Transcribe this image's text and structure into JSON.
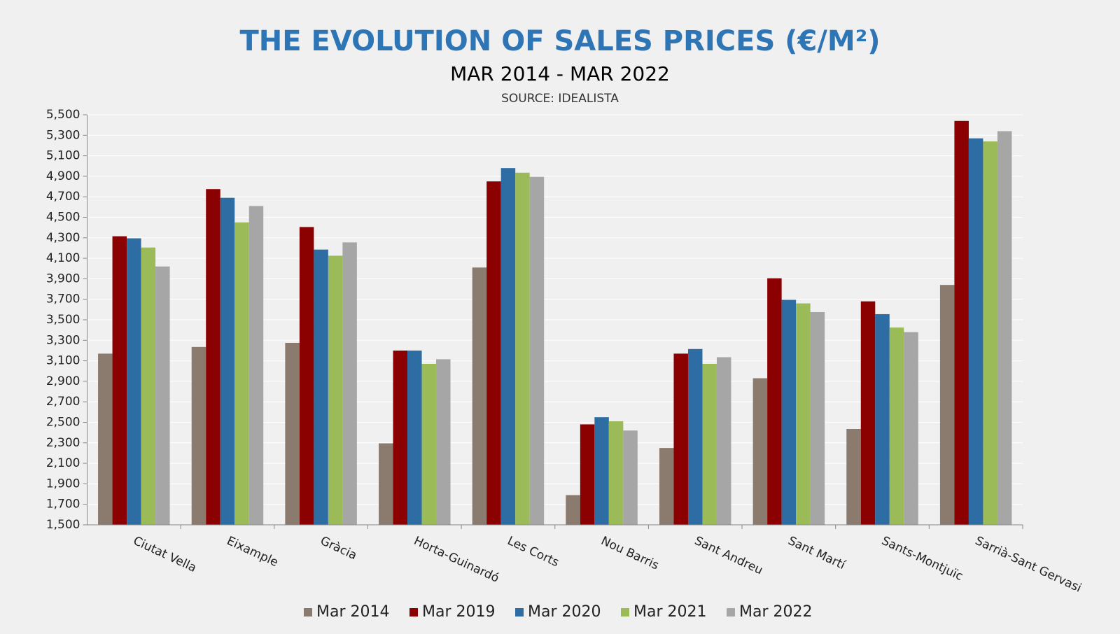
{
  "chart_data": {
    "type": "bar",
    "title": "THE EVOLUTION OF SALES PRICES (€/M²)",
    "subtitle": "MAR 2014 - MAR 2022",
    "source": "SOURCE: IDEALISTA",
    "categories": [
      "Ciutat Vella",
      "Eixample",
      "Gràcia",
      "Horta-Guinardó",
      "Les Corts",
      "Nou Barris",
      "Sant Andreu",
      "Sant Martí",
      "Sants-Montjuïc",
      "Sarrià-Sant Gervasi"
    ],
    "series": [
      {
        "name": "Mar 2014",
        "color": "#8a7b6e",
        "values": [
          3170,
          3235,
          3275,
          2295,
          4010,
          1790,
          2250,
          2930,
          2435,
          3840
        ]
      },
      {
        "name": "Mar 2019",
        "color": "#8b0000",
        "values": [
          4315,
          4775,
          4405,
          3200,
          4850,
          2480,
          3170,
          3905,
          3680,
          5440
        ]
      },
      {
        "name": "Mar 2020",
        "color": "#2e6da4",
        "values": [
          4295,
          4690,
          4185,
          3200,
          4980,
          2550,
          3215,
          3695,
          3555,
          5270
        ]
      },
      {
        "name": "Mar 2021",
        "color": "#9bbb59",
        "values": [
          4205,
          4450,
          4125,
          3070,
          4935,
          2510,
          3070,
          3660,
          3425,
          5240
        ]
      },
      {
        "name": "Mar 2022",
        "color": "#a6a6a6",
        "values": [
          4020,
          4610,
          4255,
          3115,
          4895,
          2420,
          3135,
          3575,
          3380,
          5340
        ]
      }
    ],
    "ylim": [
      1500,
      5500
    ],
    "yticks": [
      {
        "value": 1500,
        "label": "1,500"
      },
      {
        "value": 1700,
        "label": "1,700"
      },
      {
        "value": 1900,
        "label": "1,900"
      },
      {
        "value": 2100,
        "label": "2,100"
      },
      {
        "value": 2300,
        "label": "2,300"
      },
      {
        "value": 2500,
        "label": "2,500"
      },
      {
        "value": 2700,
        "label": "2,700"
      },
      {
        "value": 2900,
        "label": "2,900"
      },
      {
        "value": 3100,
        "label": "3,100"
      },
      {
        "value": 3300,
        "label": "3,300"
      },
      {
        "value": 3500,
        "label": "3,500"
      },
      {
        "value": 3700,
        "label": "3,700"
      },
      {
        "value": 3900,
        "label": "3,900"
      },
      {
        "value": 4100,
        "label": "4,100"
      },
      {
        "value": 4300,
        "label": "4,300"
      },
      {
        "value": 4500,
        "label": "4,500"
      },
      {
        "value": 4700,
        "label": "4,700"
      },
      {
        "value": 4900,
        "label": "4,900"
      },
      {
        "value": 5100,
        "label": "5,100"
      },
      {
        "value": 5300,
        "label": "5,300"
      },
      {
        "value": 5500,
        "label": "5,500"
      }
    ],
    "grid": true,
    "legend": "bottom"
  }
}
